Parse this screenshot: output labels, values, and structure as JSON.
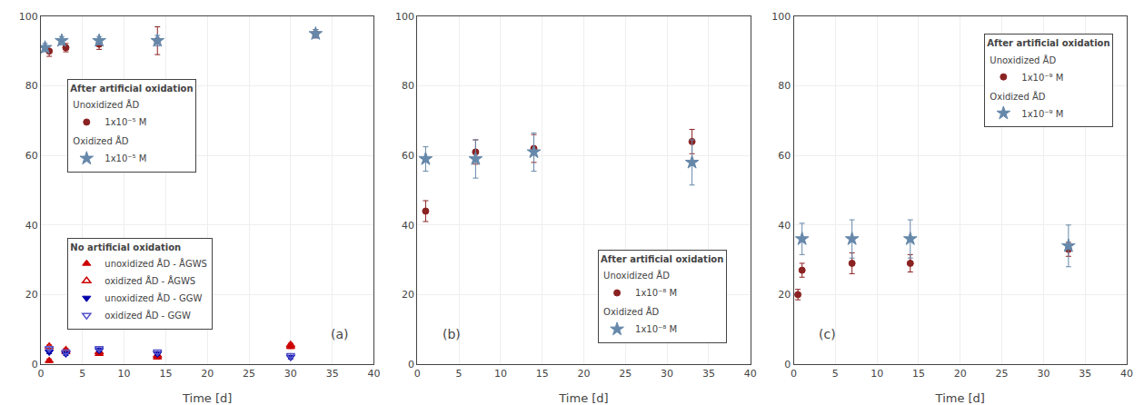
{
  "chart_data": [
    {
      "type": "scatter",
      "title": "(a)",
      "xlabel": "Time [d]",
      "xlim": [
        0,
        40
      ],
      "xticks": [
        0,
        5,
        10,
        15,
        20,
        25,
        30,
        35,
        40
      ],
      "ylim": [
        0,
        100
      ],
      "yticks": [
        0,
        20,
        40,
        60,
        80,
        100
      ],
      "grid": true,
      "legend": "left",
      "series": [
        {
          "name": "1x10⁻⁵ M",
          "legend_title": "After artificial oxidation",
          "group": "Unoxidized ÅD",
          "color": "#8B2222",
          "marker": "circle",
          "x": [
            1,
            3,
            7,
            14,
            33
          ],
          "values": [
            90,
            91,
            92,
            93,
            95
          ],
          "yerr": [
            1.5,
            1.2,
            1.5,
            4.0,
            1.2
          ]
        },
        {
          "name": "1x10⁻⁵ M",
          "legend_title": "After artificial oxidation",
          "group": "Oxidized ÅD",
          "color": "#6688AA",
          "marker": "star",
          "x": [
            0.5,
            2.5,
            7,
            14,
            33
          ],
          "values": [
            91,
            93,
            93,
            93,
            95
          ],
          "yerr": [
            1.2,
            1.2,
            1.2,
            1.5,
            1.2
          ]
        },
        {
          "name": "unoxidized ÅD - ÅGWS",
          "legend_title": "No artificial oxidation",
          "color": "#CC0000",
          "marker": "triangle-up",
          "x": [
            1,
            3,
            7,
            14,
            30
          ],
          "values": [
            1.0,
            3.5,
            3.0,
            2.0,
            5.0
          ],
          "yerr": [
            0.5,
            0.5,
            0.5,
            0.5,
            0.5
          ]
        },
        {
          "name": "oxidized ÅD - ÅGWS",
          "legend_title": "No artificial oxidation",
          "color": "#CC0000",
          "marker": "triangle-up-open",
          "x": [
            1,
            3,
            7,
            14,
            30
          ],
          "values": [
            5.0,
            4.0,
            3.5,
            2.5,
            5.5
          ],
          "yerr": [
            0.5,
            0.5,
            0.5,
            0.5,
            0.5
          ]
        },
        {
          "name": "unoxidized ÅD - GGW",
          "legend_title": "No artificial oxidation",
          "color": "#0000AA",
          "marker": "triangle-down",
          "x": [
            1,
            3,
            7,
            14,
            30
          ],
          "values": [
            3.5,
            3.0,
            4.0,
            3.0,
            2.0
          ],
          "yerr": [
            0.5,
            0.5,
            0.5,
            0.5,
            0.5
          ]
        },
        {
          "name": "oxidized ÅD - GGW",
          "legend_title": "No artificial oxidation",
          "color": "#5555CC",
          "marker": "triangle-down-open",
          "x": [
            1,
            3,
            7,
            14,
            30
          ],
          "values": [
            4.5,
            3.5,
            4.5,
            3.5,
            2.5
          ],
          "yerr": [
            0.5,
            0.5,
            0.5,
            0.5,
            0.5
          ]
        }
      ]
    },
    {
      "type": "scatter",
      "title": "(b)",
      "xlabel": "Time [d]",
      "xlim": [
        0,
        40
      ],
      "xticks": [
        0,
        5,
        10,
        15,
        20,
        25,
        30,
        35,
        40
      ],
      "ylim": [
        0,
        100
      ],
      "yticks": [
        0,
        20,
        40,
        60,
        80,
        100
      ],
      "grid": true,
      "legend": "lower right",
      "series": [
        {
          "name": "1x10⁻⁸ M",
          "legend_title": "After artificial oxidation",
          "group": "Unoxidized ÅD",
          "color": "#8B2222",
          "marker": "circle",
          "x": [
            1,
            7,
            14,
            33
          ],
          "values": [
            44,
            61,
            62,
            64
          ],
          "yerr": [
            3.0,
            3.5,
            4.0,
            3.5
          ]
        },
        {
          "name": "1x10⁻⁸ M",
          "legend_title": "After artificial oxidation",
          "group": "Oxidized ÅD",
          "color": "#6688AA",
          "marker": "star",
          "x": [
            1,
            7,
            14,
            33
          ],
          "values": [
            59,
            59,
            61,
            58
          ],
          "yerr": [
            3.5,
            5.5,
            5.5,
            6.5
          ]
        }
      ]
    },
    {
      "type": "scatter",
      "title": "(c)",
      "xlabel": "Time [d]",
      "xlim": [
        0,
        40
      ],
      "xticks": [
        0,
        5,
        10,
        15,
        20,
        25,
        30,
        35,
        40
      ],
      "ylim": [
        0,
        100
      ],
      "yticks": [
        0,
        20,
        40,
        60,
        80,
        100
      ],
      "grid": true,
      "legend": "upper right",
      "series": [
        {
          "name": "1x10⁻⁹ M",
          "legend_title": "After artificial oxidation",
          "group": "Unoxidized ÅD",
          "color": "#8B2222",
          "marker": "circle",
          "x": [
            1,
            7,
            14,
            33
          ],
          "values": [
            27,
            29,
            29,
            33
          ],
          "yerr": [
            2.0,
            3.0,
            2.5,
            2.0
          ]
        },
        {
          "name": "1x10⁻⁹ M",
          "legend_title": "After artificial oxidation",
          "group": "Oxidized ÅD",
          "color": "#6688AA",
          "marker": "star",
          "x": [
            1,
            7,
            14,
            33
          ],
          "values": [
            36,
            36,
            36,
            34
          ],
          "yerr": [
            4.5,
            5.5,
            5.5,
            6.0
          ]
        },
        {
          "color": "#8B2222",
          "marker": "circle",
          "x": [
            0.5
          ],
          "values": [
            20
          ],
          "yerr": [
            1.5
          ]
        }
      ]
    }
  ]
}
